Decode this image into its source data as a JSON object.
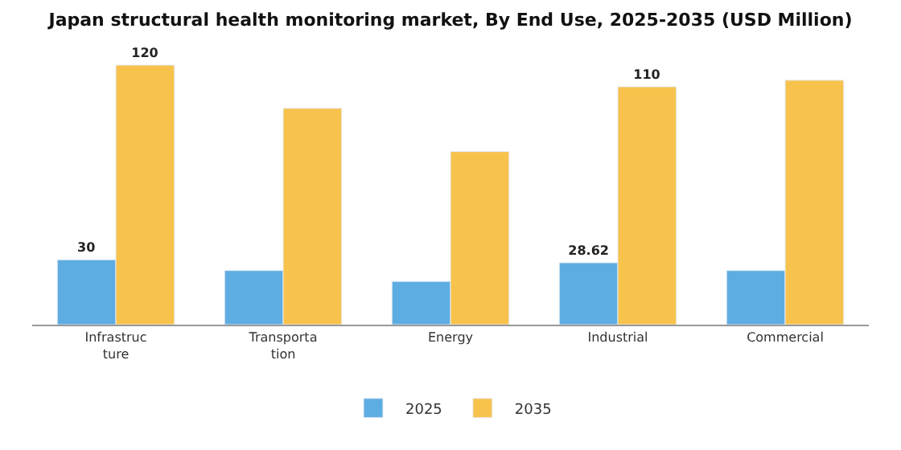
{
  "chart_data": {
    "type": "bar",
    "title": "Japan structural health monitoring market, By End Use, 2025-2035 (USD Million)",
    "categories": [
      "Infrastructure",
      "Transportation",
      "Energy",
      "Industrial",
      "Commercial"
    ],
    "series": [
      {
        "name": "2025",
        "color": "#5dade2",
        "values": [
          30,
          25,
          20,
          28.62,
          25
        ],
        "value_labels": [
          "30",
          null,
          null,
          "28.62",
          null
        ]
      },
      {
        "name": "2035",
        "color": "#f7c34c",
        "values": [
          120,
          100,
          80,
          110,
          113
        ],
        "value_labels": [
          "120",
          null,
          null,
          "110",
          null
        ]
      }
    ],
    "legend": "bottom"
  }
}
